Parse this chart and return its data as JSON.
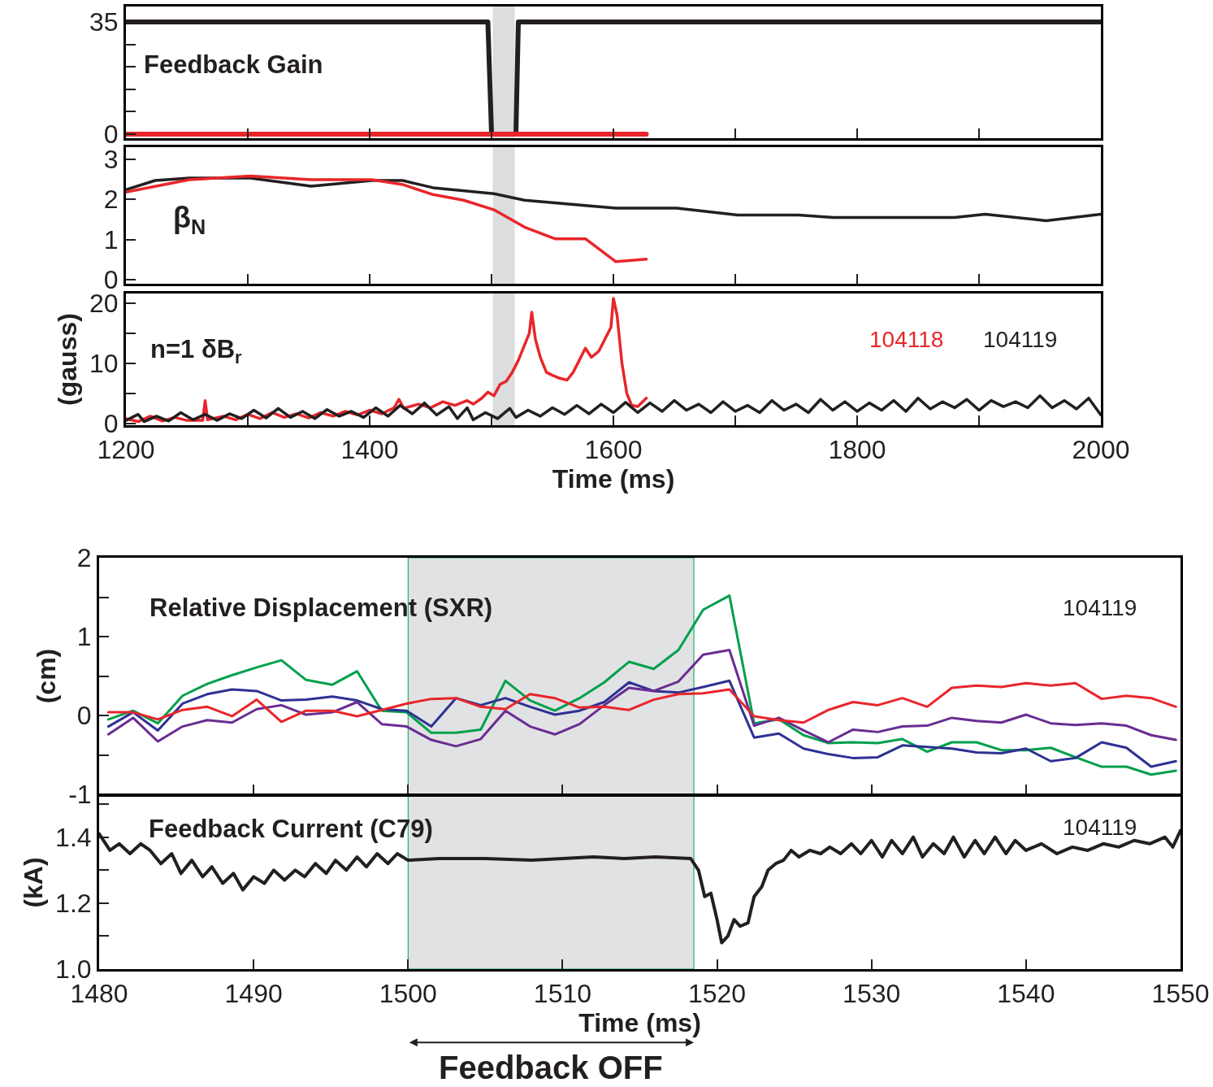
{
  "chart_data": [
    {
      "type": "line",
      "annotations": [
        "Feedback Gain"
      ],
      "xlim": [
        1200,
        2000
      ],
      "xticks": [
        1200,
        1300,
        1400,
        1500,
        1600,
        1700,
        1800,
        1900,
        2000
      ],
      "ylim": [
        -1.3,
        39.8
      ],
      "yticks": [
        0,
        {
          "value": 7,
          "label": null
        },
        {
          "value": 14,
          "label": null
        },
        {
          "value": 21,
          "label": null
        },
        {
          "value": 28,
          "label": null
        },
        35
      ],
      "tick_labels": "y",
      "bands": [
        {
          "axis": "x",
          "from": 1501,
          "to": 1519,
          "color": "#dcdddf"
        }
      ],
      "series": [
        {
          "color": "#231f20",
          "x": [
            1200,
            1497,
            1500,
            1520,
            1522,
            2000
          ],
          "values": [
            35,
            35,
            0,
            0,
            35,
            35
          ]
        },
        {
          "color": "#e8262a",
          "x": [
            1200,
            1627
          ],
          "values": [
            0,
            0
          ]
        }
      ]
    },
    {
      "type": "line",
      "annotations": [
        "β$_{N}$"
      ],
      "xlim": [
        1200,
        2000
      ],
      "xticks": [
        1200,
        1300,
        1400,
        1500,
        1600,
        1700,
        1800,
        1900,
        2000
      ],
      "ylim": [
        -0.1,
        3.3
      ],
      "yticks": [
        0,
        1,
        2,
        3
      ],
      "tick_labels": "y",
      "bands": [
        {
          "axis": "x",
          "from": 1501,
          "to": 1519,
          "color": "#dcdddf"
        }
      ],
      "series": [
        {
          "color": "#231f20",
          "x": [
            1200,
            1224,
            1252,
            1302,
            1352,
            1402,
            1427,
            1452,
            1502,
            1527,
            1602,
            1652,
            1702,
            1752,
            1780,
            1880,
            1905,
            1955,
            2000
          ],
          "values": [
            2.24,
            2.47,
            2.53,
            2.53,
            2.33,
            2.47,
            2.47,
            2.29,
            2.14,
            1.98,
            1.78,
            1.78,
            1.61,
            1.61,
            1.55,
            1.55,
            1.63,
            1.47,
            1.63
          ]
        },
        {
          "color": "#e8262a",
          "x": [
            1200,
            1252,
            1302,
            1352,
            1402,
            1427,
            1452,
            1477,
            1502,
            1527,
            1552,
            1577,
            1602,
            1627
          ],
          "values": [
            2.18,
            2.49,
            2.58,
            2.49,
            2.49,
            2.37,
            2.12,
            1.98,
            1.74,
            1.31,
            1.02,
            1.02,
            0.45,
            0.51
          ]
        }
      ]
    },
    {
      "type": "line",
      "annotations": [
        "n=1 δB$_{r}$"
      ],
      "ylabel": "(gauss)",
      "xlabel": "Time (ms)",
      "xlim": [
        1200,
        2000
      ],
      "xticks": [
        1200,
        {
          "value": 1300,
          "label": null
        },
        1400,
        {
          "value": 1500,
          "label": null
        },
        1600,
        {
          "value": 1700,
          "label": null
        },
        1800,
        {
          "value": 1900,
          "label": null
        },
        2000
      ],
      "ylim": [
        -0.3,
        21.6
      ],
      "yticks": [
        0,
        {
          "value": 5,
          "label": null
        },
        10,
        {
          "value": 15,
          "label": null
        },
        20
      ],
      "bands": [
        {
          "axis": "x",
          "from": 1501,
          "to": 1519,
          "color": "#dcdddf"
        }
      ],
      "series": [
        {
          "name": "104118",
          "color": "#e8262a",
          "x": [
            1200,
            1210,
            1220,
            1230,
            1240,
            1250,
            1263,
            1265,
            1267,
            1280,
            1290,
            1300,
            1310,
            1320,
            1330,
            1340,
            1350,
            1360,
            1370,
            1380,
            1390,
            1400,
            1410,
            1420,
            1424,
            1428,
            1440,
            1450,
            1460,
            1470,
            1480,
            1485,
            1492,
            1497,
            1502,
            1507,
            1512,
            1517,
            1522,
            1527,
            1531,
            1533,
            1536,
            1540,
            1545,
            1550,
            1556,
            1562,
            1567,
            1572,
            1577,
            1582,
            1588,
            1593,
            1598,
            1600,
            1603,
            1607,
            1611,
            1615,
            1620,
            1627
          ],
          "values": [
            0.8,
            0.3,
            1.2,
            0.4,
            1.0,
            0.5,
            0.5,
            3.8,
            0.6,
            1.2,
            0.6,
            1.5,
            0.8,
            1.8,
            1.0,
            1.6,
            0.9,
            1.8,
            1.2,
            2.0,
            1.4,
            2.2,
            1.6,
            2.6,
            4.0,
            2.5,
            3.2,
            2.6,
            3.6,
            3.0,
            3.8,
            3.2,
            4.2,
            5.2,
            4.6,
            6.5,
            7.0,
            8.5,
            10.5,
            13,
            15,
            18.5,
            14,
            11,
            8.5,
            8,
            7.5,
            7.2,
            8.5,
            10.5,
            12.5,
            11,
            12,
            14,
            16,
            20.8,
            18,
            10,
            5,
            3,
            2.8,
            4.2
          ]
        },
        {
          "name": "104119",
          "color": "#231f20",
          "x": [
            1200,
            1210,
            1215,
            1225,
            1235,
            1245,
            1255,
            1265,
            1275,
            1285,
            1295,
            1305,
            1315,
            1325,
            1335,
            1345,
            1355,
            1365,
            1375,
            1385,
            1395,
            1405,
            1415,
            1425,
            1435,
            1445,
            1455,
            1465,
            1472,
            1480,
            1485,
            1495,
            1505,
            1515,
            1520,
            1530,
            1540,
            1550,
            1560,
            1570,
            1580,
            1590,
            1600,
            1610,
            1620,
            1630,
            1640,
            1650,
            1660,
            1670,
            1680,
            1690,
            1700,
            1710,
            1720,
            1730,
            1740,
            1750,
            1760,
            1770,
            1780,
            1790,
            1800,
            1810,
            1820,
            1830,
            1840,
            1850,
            1860,
            1870,
            1880,
            1890,
            1900,
            1910,
            1920,
            1930,
            1940,
            1950,
            1960,
            1970,
            1980,
            1990,
            2000
          ],
          "values": [
            0.5,
            1.5,
            0.3,
            1.2,
            0.4,
            1.8,
            0.6,
            1.5,
            0.5,
            1.6,
            0.8,
            2.2,
            0.9,
            2.5,
            1.0,
            2.0,
            0.8,
            2.3,
            1.2,
            2.0,
            1.0,
            2.6,
            1.2,
            3.0,
            1.6,
            3.4,
            1.4,
            2.8,
            0.8,
            2.6,
            0.6,
            1.8,
            0.8,
            2.5,
            1.0,
            2.2,
            1.2,
            2.6,
            1.5,
            3.0,
            1.6,
            3.2,
            1.8,
            3.5,
            1.8,
            3.4,
            2.0,
            3.8,
            2.2,
            3.2,
            1.8,
            3.6,
            2.0,
            3.0,
            1.8,
            3.8,
            2.2,
            3.2,
            1.8,
            4.0,
            2.2,
            3.6,
            2.0,
            3.4,
            2.2,
            3.8,
            2.0,
            4.2,
            2.4,
            3.6,
            2.6,
            4.0,
            2.2,
            3.8,
            2.8,
            3.6,
            2.6,
            4.6,
            2.6,
            3.8,
            2.4,
            4.2,
            1.4
          ]
        }
      ]
    },
    {
      "type": "line",
      "annotations": [
        "Relative Displacement (SXR)",
        "104119"
      ],
      "ylabel": "(cm)",
      "xlim": [
        1480,
        1550
      ],
      "xticks": [
        1480,
        1490,
        1500,
        1510,
        1520,
        1530,
        1540,
        1550
      ],
      "ylim": [
        -1,
        2
      ],
      "yticks": [
        -1,
        {
          "value": -0.5,
          "label": null
        },
        0,
        {
          "value": 0.5,
          "label": null
        },
        1,
        {
          "value": 1.5,
          "label": null
        },
        2
      ],
      "tick_labels": "y",
      "bands": [
        {
          "axis": "x",
          "from": 1500,
          "to": 1518.5,
          "color": "#e1e2e4"
        }
      ],
      "x": [
        1480.6,
        1482.2,
        1483.8,
        1485.4,
        1487.0,
        1488.6,
        1490.2,
        1491.8,
        1493.4,
        1495.1,
        1496.7,
        1498.3,
        1499.9,
        1501.5,
        1503.1,
        1504.7,
        1506.3,
        1507.9,
        1509.5,
        1511.1,
        1512.7,
        1514.3,
        1515.9,
        1517.5,
        1519.1,
        1520.8,
        1522.4,
        1524.0,
        1525.6,
        1527.2,
        1528.8,
        1530.4,
        1532.0,
        1533.6,
        1535.2,
        1536.8,
        1538.4,
        1540.0,
        1541.6,
        1543.2,
        1544.9,
        1546.5,
        1548.1,
        1549.7
      ],
      "series": [
        {
          "color": "#00a04b",
          "values": [
            -0.05,
            0.06,
            -0.1,
            0.25,
            0.4,
            0.51,
            0.61,
            0.7,
            0.45,
            0.39,
            0.56,
            0.06,
            0.04,
            -0.22,
            -0.22,
            -0.18,
            0.44,
            0.19,
            0.06,
            0.22,
            0.42,
            0.68,
            0.59,
            0.83,
            1.34,
            1.52,
            -0.1,
            -0.05,
            -0.25,
            -0.35,
            -0.34,
            -0.35,
            -0.3,
            -0.46,
            -0.34,
            -0.34,
            -0.44,
            -0.44,
            -0.41,
            -0.53,
            -0.65,
            -0.65,
            -0.75,
            -0.7
          ]
        },
        {
          "color": "#2e3192",
          "values": [
            -0.14,
            0.04,
            -0.19,
            0.15,
            0.27,
            0.33,
            0.31,
            0.19,
            0.2,
            0.24,
            0.19,
            0.08,
            0.06,
            -0.14,
            0.22,
            0.13,
            0.22,
            0.11,
            0.01,
            0.06,
            0.17,
            0.42,
            0.31,
            0.29,
            0.36,
            0.44,
            -0.28,
            -0.23,
            -0.42,
            -0.49,
            -0.54,
            -0.53,
            -0.38,
            -0.4,
            -0.42,
            -0.47,
            -0.48,
            -0.42,
            -0.58,
            -0.54,
            -0.34,
            -0.41,
            -0.65,
            -0.58
          ]
        },
        {
          "color": "#6a2c91",
          "values": [
            -0.24,
            -0.03,
            -0.33,
            -0.14,
            -0.06,
            -0.09,
            0.08,
            0.13,
            0.01,
            0.04,
            0.17,
            -0.11,
            -0.14,
            -0.31,
            -0.39,
            -0.3,
            0.06,
            -0.14,
            -0.24,
            -0.11,
            0.13,
            0.35,
            0.31,
            0.43,
            0.77,
            0.83,
            -0.13,
            -0.03,
            -0.19,
            -0.34,
            -0.18,
            -0.21,
            -0.14,
            -0.13,
            -0.03,
            -0.07,
            -0.09,
            0.01,
            -0.1,
            -0.12,
            -0.1,
            -0.13,
            -0.25,
            -0.31
          ]
        },
        {
          "color": "#e8262a",
          "values": [
            0.04,
            0.04,
            -0.05,
            0.07,
            0.11,
            -0.01,
            0.2,
            -0.08,
            0.06,
            0.06,
            -0.01,
            0.07,
            0.15,
            0.21,
            0.22,
            0.11,
            0.08,
            0.27,
            0.22,
            0.1,
            0.11,
            0.07,
            0.2,
            0.27,
            0.28,
            0.33,
            -0.01,
            -0.06,
            -0.09,
            0.07,
            0.17,
            0.13,
            0.22,
            0.11,
            0.35,
            0.38,
            0.36,
            0.41,
            0.38,
            0.41,
            0.21,
            0.25,
            0.22,
            0.11
          ]
        }
      ]
    },
    {
      "type": "line",
      "annotations": [
        "Feedback Current (C79)",
        "104119"
      ],
      "ylabel": "(kA)",
      "xlabel": "Time (ms)",
      "xlim": [
        1480,
        1550
      ],
      "xticks": [
        1480,
        1490,
        1500,
        1510,
        1520,
        1530,
        1540,
        1550
      ],
      "ylim": [
        1.0,
        1.525
      ],
      "yticks": [
        {
          "value": 1.0,
          "label": "1.0"
        },
        {
          "value": 1.1,
          "label": null
        },
        1.2,
        {
          "value": 1.3,
          "label": null
        },
        1.4,
        {
          "value": 1.5,
          "label": null
        }
      ],
      "bands": [
        {
          "axis": "x",
          "from": 1500,
          "to": 1518.5,
          "color": "#e1e2e4",
          "label": "Feedback OFF"
        }
      ],
      "series": [
        {
          "color": "#231f20",
          "x": [
            1480,
            1480.7,
            1481.3,
            1482,
            1482.7,
            1483.3,
            1484,
            1484.7,
            1485.3,
            1486,
            1486.7,
            1487.3,
            1488,
            1488.7,
            1489.3,
            1490,
            1490.7,
            1491.3,
            1492,
            1492.7,
            1493.3,
            1494,
            1494.7,
            1495.3,
            1496,
            1496.7,
            1497.3,
            1498,
            1498.7,
            1499.3,
            1500,
            1502,
            1505,
            1508,
            1510,
            1512,
            1514,
            1516,
            1518.3,
            1518.8,
            1519.2,
            1519.6,
            1520,
            1520.3,
            1520.7,
            1521.1,
            1521.5,
            1522,
            1522.4,
            1522.9,
            1523.3,
            1523.8,
            1524.3,
            1524.8,
            1525.3,
            1526,
            1526.7,
            1527.3,
            1528,
            1528.7,
            1529.3,
            1530,
            1530.7,
            1531.3,
            1532,
            1532.7,
            1533.3,
            1534,
            1534.7,
            1535.3,
            1536,
            1536.7,
            1537.3,
            1538,
            1538.7,
            1539.3,
            1540,
            1541,
            1542,
            1543,
            1544,
            1545,
            1546,
            1547,
            1548,
            1549,
            1549.5,
            1550
          ],
          "values": [
            1.41,
            1.36,
            1.38,
            1.35,
            1.38,
            1.36,
            1.32,
            1.35,
            1.29,
            1.33,
            1.28,
            1.31,
            1.26,
            1.29,
            1.24,
            1.28,
            1.26,
            1.3,
            1.27,
            1.3,
            1.28,
            1.32,
            1.29,
            1.33,
            1.3,
            1.34,
            1.31,
            1.35,
            1.32,
            1.35,
            1.33,
            1.335,
            1.335,
            1.33,
            1.335,
            1.34,
            1.335,
            1.34,
            1.335,
            1.3,
            1.22,
            1.23,
            1.15,
            1.08,
            1.1,
            1.15,
            1.13,
            1.14,
            1.22,
            1.25,
            1.3,
            1.32,
            1.33,
            1.36,
            1.34,
            1.36,
            1.35,
            1.37,
            1.35,
            1.38,
            1.35,
            1.39,
            1.34,
            1.39,
            1.35,
            1.4,
            1.34,
            1.38,
            1.35,
            1.4,
            1.34,
            1.39,
            1.35,
            1.4,
            1.35,
            1.39,
            1.36,
            1.38,
            1.35,
            1.37,
            1.36,
            1.38,
            1.37,
            1.39,
            1.38,
            1.4,
            1.37,
            1.42
          ]
        }
      ]
    }
  ]
}
